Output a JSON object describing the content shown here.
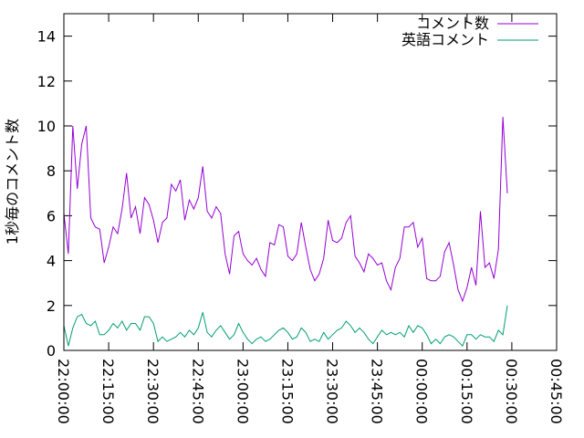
{
  "chart_data": {
    "type": "line",
    "title": "",
    "ylabel": "1秒毎のコメント数",
    "xlabel": "",
    "ylim": [
      0,
      15
    ],
    "yticks": [
      0,
      2,
      4,
      6,
      8,
      10,
      12,
      14
    ],
    "xlim_minutes": [
      0,
      165
    ],
    "xticks": [
      "22:00:00",
      "22:15:00",
      "22:30:00",
      "22:45:00",
      "23:00:00",
      "23:15:00",
      "23:30:00",
      "23:45:00",
      "00:00:00",
      "00:15:00",
      "00:30:00",
      "00:45:00"
    ],
    "legend_position": "top-right",
    "grid": false,
    "x_minutes": [
      0,
      1.5,
      3,
      4.5,
      6,
      7.5,
      9,
      10.5,
      12,
      13.5,
      15,
      16.5,
      18,
      19.5,
      21,
      22.5,
      24,
      25.5,
      27,
      28.5,
      30,
      31.5,
      33,
      34.5,
      36,
      37.5,
      39,
      40.5,
      42,
      43.5,
      45,
      46.5,
      48,
      49.5,
      51,
      52.5,
      54,
      55.5,
      57,
      58.5,
      60,
      61.5,
      63,
      64.5,
      66,
      67.5,
      69,
      70.5,
      72,
      73.5,
      75,
      76.5,
      78,
      79.5,
      81,
      82.5,
      84,
      85.5,
      87,
      88.5,
      90,
      91.5,
      93,
      94.5,
      96,
      97.5,
      99,
      100.5,
      102,
      103.5,
      105,
      106.5,
      108,
      109.5,
      111,
      112.5,
      114,
      115.5,
      117,
      118.5,
      120,
      121.5,
      123,
      124.5,
      126,
      127.5,
      129,
      130.5,
      132,
      133.5,
      135,
      136.5,
      138,
      139.5,
      141,
      142.5,
      144,
      145.5,
      147,
      148.5
    ],
    "series": [
      {
        "name": "コメント数",
        "color": "#9400d3",
        "values": [
          6.1,
          4.3,
          10,
          7.2,
          9.2,
          10,
          5.9,
          5.5,
          5.4,
          3.9,
          4.6,
          5.5,
          5.2,
          6.3,
          7.9,
          5.9,
          6.4,
          5.2,
          6.8,
          6.5,
          5.8,
          4.8,
          5.7,
          5.9,
          7.4,
          7.1,
          7.6,
          5.8,
          6.7,
          6.3,
          6.8,
          8.2,
          6.2,
          5.9,
          6.4,
          6.1,
          4.3,
          3.4,
          5.1,
          5.3,
          4.3,
          4.0,
          3.8,
          4.1,
          3.6,
          3.3,
          4.8,
          4.7,
          5.6,
          5.5,
          4.2,
          4.0,
          4.3,
          5.7,
          4.6,
          3.6,
          3.1,
          3.4,
          4.1,
          5.8,
          4.9,
          4.8,
          5.0,
          5.7,
          6.0,
          4.2,
          3.9,
          3.5,
          4.3,
          4.1,
          3.8,
          3.9,
          3.1,
          2.7,
          3.7,
          4.1,
          5.5,
          5.5,
          5.7,
          4.6,
          5.0,
          3.2,
          3.1,
          3.1,
          3.3,
          4.4,
          4.8,
          3.8,
          2.7,
          2.2,
          2.8,
          3.7,
          2.9,
          6.2,
          3.7,
          3.9,
          3.2,
          4.5,
          10.4,
          7.0
        ]
      },
      {
        "name": "英語コメント",
        "color": "#009e73",
        "values": [
          1.1,
          0.2,
          1.0,
          1.5,
          1.6,
          1.2,
          1.1,
          1.3,
          0.7,
          0.7,
          0.9,
          1.2,
          1.0,
          1.3,
          0.9,
          1.2,
          1.2,
          0.9,
          1.5,
          1.5,
          1.2,
          0.4,
          0.6,
          0.4,
          0.5,
          0.6,
          0.8,
          0.6,
          0.9,
          0.7,
          1.0,
          1.7,
          0.8,
          0.6,
          0.9,
          1.1,
          0.8,
          0.5,
          0.7,
          1.2,
          0.8,
          0.5,
          0.3,
          0.5,
          0.6,
          0.4,
          0.5,
          0.7,
          0.9,
          1.0,
          0.8,
          0.5,
          0.6,
          1.0,
          0.8,
          0.4,
          0.5,
          0.4,
          0.8,
          0.5,
          0.7,
          0.9,
          1.0,
          1.3,
          1.1,
          0.8,
          1.0,
          0.8,
          0.5,
          0.3,
          0.6,
          0.9,
          0.7,
          0.8,
          0.7,
          0.8,
          0.6,
          1.1,
          0.8,
          1.1,
          1.0,
          0.7,
          0.3,
          0.5,
          0.3,
          0.6,
          0.7,
          0.6,
          0.4,
          0.2,
          0.7,
          0.7,
          0.5,
          0.7,
          0.6,
          0.6,
          0.4,
          0.9,
          0.7,
          2.0
        ]
      }
    ]
  }
}
